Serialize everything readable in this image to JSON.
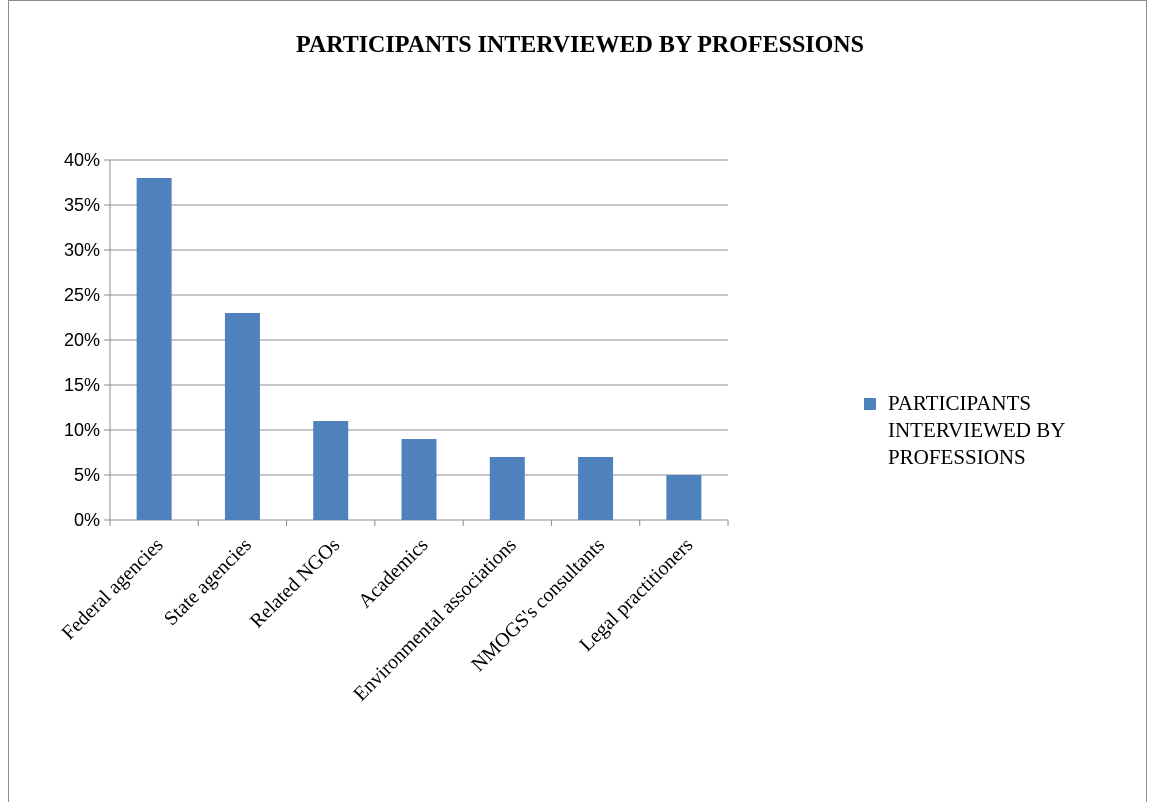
{
  "colors": {
    "bar": "#4f81bd",
    "grid": "#8c8c8c",
    "axis": "#8c8c8c"
  },
  "chart_data": {
    "type": "bar",
    "title": "PARTICIPANTS INTERVIEWED BY PROFESSIONS",
    "categories": [
      "Federal agencies",
      "State agencies",
      "Related NGOs",
      "Academics",
      "Environmental associations",
      "NMOGS's consultants",
      "Legal practitioners"
    ],
    "series": [
      {
        "name": "PARTICIPANTS INTERVIEWED BY PROFESSIONS",
        "values": [
          38,
          23,
          11,
          9,
          7,
          7,
          5
        ]
      }
    ],
    "yticks": [
      "0%",
      "5%",
      "10%",
      "15%",
      "20%",
      "25%",
      "30%",
      "35%",
      "40%"
    ],
    "ylim": [
      0,
      40
    ],
    "grid": true,
    "legend_position": "right"
  }
}
